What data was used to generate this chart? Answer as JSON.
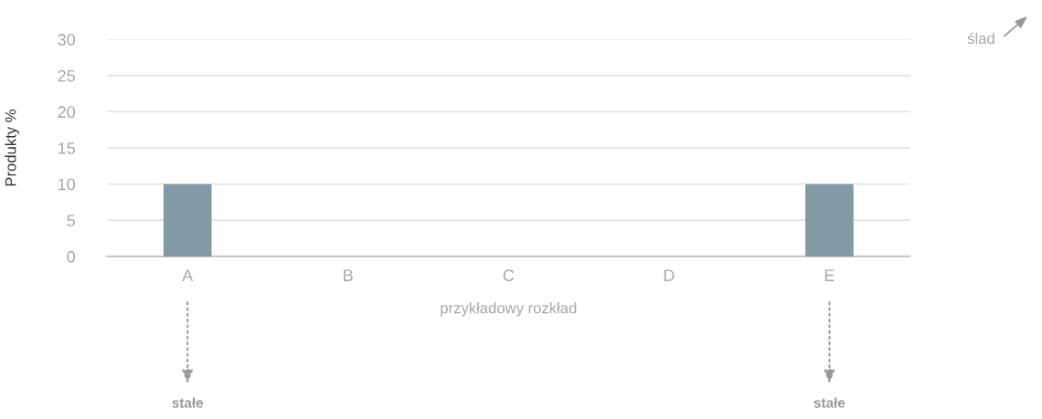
{
  "chart_data": {
    "type": "bar",
    "categories": [
      "A",
      "B",
      "C",
      "D",
      "E"
    ],
    "values": [
      10,
      0,
      0,
      0,
      10
    ],
    "color": "#8399a4",
    "xlabel": "przykładowy rozkład",
    "ylabel": "Produkty %",
    "ylim": [
      0,
      30
    ],
    "yticks": [
      0,
      5,
      10,
      15,
      20,
      25,
      30
    ],
    "grid": "y",
    "annotations": [
      "stałe",
      "stałe",
      "ślad"
    ]
  }
}
